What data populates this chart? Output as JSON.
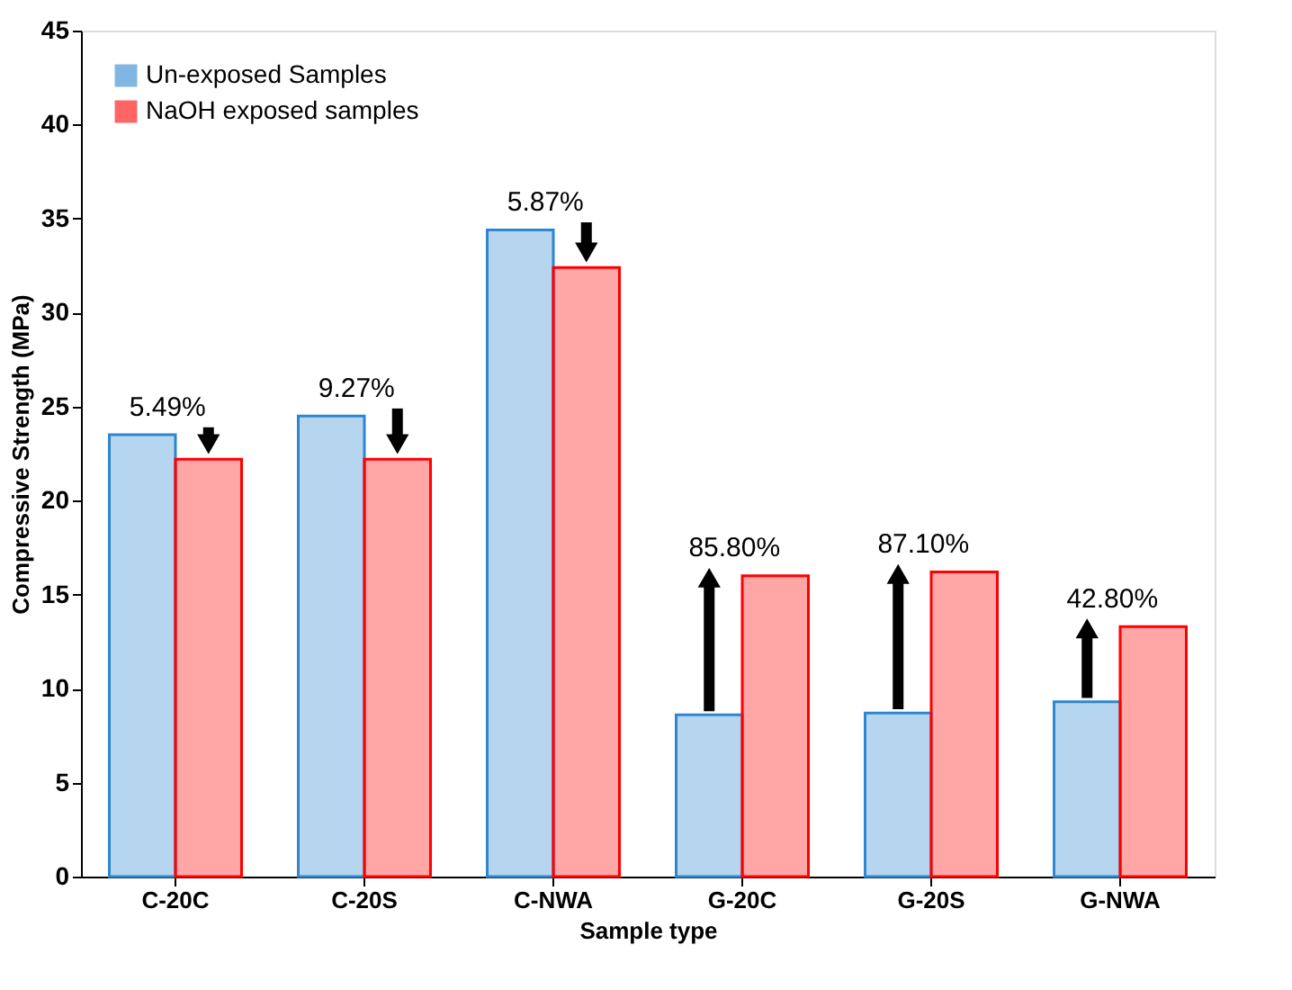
{
  "chart_data": {
    "type": "bar",
    "xlabel": "Sample type",
    "ylabel": "Compressive Strength (MPa)",
    "categories": [
      "C-20C",
      "C-20S",
      "C-NWA",
      "G-20C",
      "G-20S",
      "G-NWA"
    ],
    "series": [
      {
        "name": "Un-exposed Samples",
        "color": "#2e86d0",
        "values": [
          23.5,
          24.5,
          34.4,
          8.6,
          8.7,
          9.3
        ]
      },
      {
        "name": "NaOH exposed samples",
        "color": "#ff0000",
        "values": [
          22.2,
          22.2,
          32.4,
          16.0,
          16.2,
          13.3
        ]
      }
    ],
    "annotations": [
      {
        "text": "5.49%",
        "x": "C-20C",
        "y": 22.2
      },
      {
        "text": "9.27%",
        "x": "C-20S",
        "y": 22.2
      },
      {
        "text": "5.87%",
        "x": "C-NWA",
        "y": 32.4
      },
      {
        "text": "85.80%",
        "x": "G-20C",
        "y": 16.0
      },
      {
        "text": "87.10%",
        "x": "G-20S",
        "y": 16.2
      },
      {
        "text": "42.80%",
        "x": "G-NWA",
        "y": 13.3
      }
    ],
    "ylim": [
      0,
      45
    ],
    "yticks": [
      0,
      5,
      10,
      15,
      20,
      25,
      30,
      35,
      40,
      45
    ],
    "grid": false,
    "legend": "top left"
  }
}
